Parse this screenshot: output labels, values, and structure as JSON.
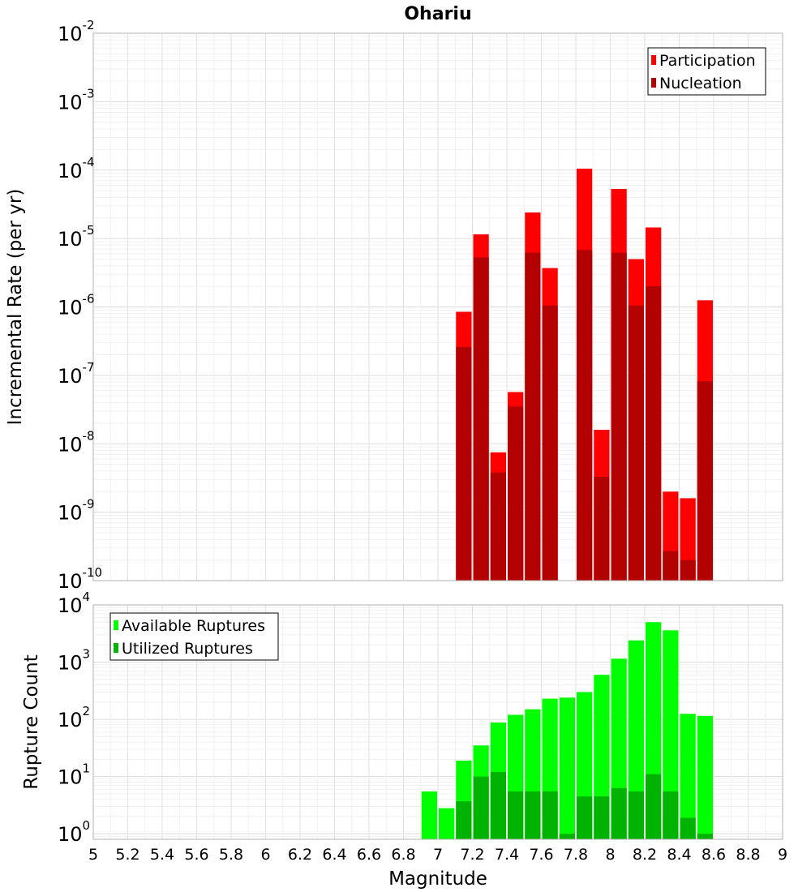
{
  "chart_data": {
    "title": "Ohariu",
    "xlabel": "Magnitude",
    "x_ticks": [
      "5",
      "5.2",
      "5.4",
      "5.6",
      "5.8",
      "6",
      "6.2",
      "6.4",
      "6.6",
      "6.8",
      "7",
      "7.2",
      "7.4",
      "7.6",
      "7.8",
      "8",
      "8.2",
      "8.4",
      "8.6",
      "8.8",
      "9"
    ],
    "xlim": [
      5,
      9
    ],
    "panels": [
      {
        "type": "bar",
        "ylabel": "Incremental Rate (per yr)",
        "yscale": "log",
        "ylim": [
          1e-10,
          0.01
        ],
        "y_ticks": [
          {
            "value": 1e-10,
            "base": "10",
            "exp": "-10"
          },
          {
            "value": 1e-09,
            "base": "10",
            "exp": "-9"
          },
          {
            "value": 1e-08,
            "base": "10",
            "exp": "-8"
          },
          {
            "value": 1e-07,
            "base": "10",
            "exp": "-7"
          },
          {
            "value": 1e-06,
            "base": "10",
            "exp": "-6"
          },
          {
            "value": 1e-05,
            "base": "10",
            "exp": "-5"
          },
          {
            "value": 0.0001,
            "base": "10",
            "exp": "-4"
          },
          {
            "value": 0.001,
            "base": "10",
            "exp": "-3"
          },
          {
            "value": 0.01,
            "base": "10",
            "exp": "-2"
          }
        ],
        "legend": {
          "position": "top-right",
          "entries": [
            "Participation",
            "Nucleation"
          ]
        },
        "series": [
          {
            "name": "Participation",
            "color": "#ff0000",
            "x": [
              7.15,
              7.25,
              7.35,
              7.45,
              7.55,
              7.65,
              7.85,
              7.95,
              8.05,
              8.15,
              8.25,
              8.35,
              8.45,
              8.55
            ],
            "values": [
              8.5e-07,
              1.15e-05,
              7.5e-09,
              5.7e-08,
              2.4e-05,
              3.7e-06,
              0.000105,
              1.6e-08,
              5.3e-05,
              5e-06,
              1.45e-05,
              2e-09,
              1.6e-09,
              1.25e-06
            ]
          },
          {
            "name": "Nucleation",
            "color": "#b30000",
            "x": [
              7.15,
              7.25,
              7.35,
              7.45,
              7.55,
              7.65,
              7.85,
              7.95,
              8.05,
              8.15,
              8.25,
              8.35,
              8.45,
              8.55
            ],
            "values": [
              2.6e-07,
              5.3e-06,
              3.8e-09,
              3.5e-08,
              6.2e-06,
              1.05e-06,
              6.8e-06,
              3.3e-09,
              6.2e-06,
              1.05e-06,
              2e-06,
              2.7e-10,
              2e-10,
              8.2e-08
            ]
          }
        ]
      },
      {
        "type": "bar",
        "ylabel": "Rupture Count",
        "yscale": "log",
        "ylim": [
          0.8,
          10000
        ],
        "y_ticks": [
          {
            "value": 1,
            "base": "10",
            "exp": "0"
          },
          {
            "value": 10,
            "base": "10",
            "exp": "1"
          },
          {
            "value": 100,
            "base": "10",
            "exp": "2"
          },
          {
            "value": 1000,
            "base": "10",
            "exp": "3"
          },
          {
            "value": 10000,
            "base": "10",
            "exp": "4"
          }
        ],
        "legend": {
          "position": "top-left",
          "entries": [
            "Available Ruptures",
            "Utilized Ruptures"
          ]
        },
        "series": [
          {
            "name": "Available Ruptures",
            "color": "#00ff00",
            "x": [
              6.95,
              7.05,
              7.15,
              7.25,
              7.35,
              7.45,
              7.55,
              7.65,
              7.75,
              7.85,
              7.95,
              8.05,
              8.15,
              8.25,
              8.35,
              8.45,
              8.55
            ],
            "values": [
              5.5,
              2.8,
              19,
              35,
              88,
              120,
              150,
              230,
              240,
              300,
              600,
              1150,
              2400,
              5000,
              3600,
              125,
              115
            ]
          },
          {
            "name": "Utilized Ruptures",
            "color": "#00b300",
            "x": [
              7.15,
              7.25,
              7.35,
              7.45,
              7.55,
              7.65,
              7.75,
              7.85,
              7.95,
              8.05,
              8.15,
              8.25,
              8.35,
              8.45,
              8.55
            ],
            "values": [
              3.7,
              10,
              12,
              5.5,
              5.5,
              5.5,
              1,
              4.5,
              4.5,
              6.3,
              5.5,
              11,
              5.5,
              1.9,
              1
            ]
          }
        ]
      }
    ]
  }
}
